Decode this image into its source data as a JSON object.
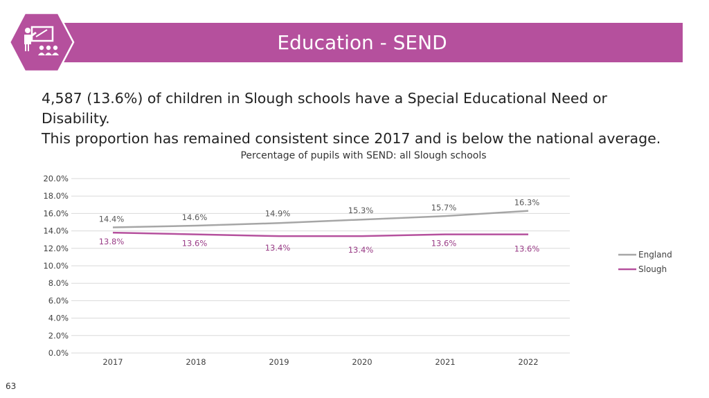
{
  "header": {
    "title": "Education - SEND",
    "accent_color": "#b5509d",
    "icon": "teacher-presentation-icon"
  },
  "summary": {
    "line1": "4,587 (13.6%) of children in Slough schools have a Special Educational Need or Disability.",
    "line2": "This proportion has remained consistent since 2017 and is below the national average."
  },
  "chart_data": {
    "type": "line",
    "title": "Percentage of pupils with SEND: all Slough schools",
    "categories": [
      "2017",
      "2018",
      "2019",
      "2020",
      "2021",
      "2022"
    ],
    "ylim": [
      0,
      20
    ],
    "yticks": [
      "0.0%",
      "2.0%",
      "4.0%",
      "6.0%",
      "8.0%",
      "10.0%",
      "12.0%",
      "14.0%",
      "16.0%",
      "18.0%",
      "20.0%"
    ],
    "grid": true,
    "legend": "right",
    "series": [
      {
        "name": "England",
        "color": "#a6a6a6",
        "label_color": "#595959",
        "values": [
          14.4,
          14.6,
          14.9,
          15.3,
          15.7,
          16.3
        ],
        "labels": [
          "14.4%",
          "14.6%",
          "14.9%",
          "15.3%",
          "15.7%",
          "16.3%"
        ]
      },
      {
        "name": "Slough",
        "color": "#b5509d",
        "label_color": "#9a3d87",
        "values": [
          13.8,
          13.6,
          13.4,
          13.4,
          13.6,
          13.6
        ],
        "labels": [
          "13.8%",
          "13.6%",
          "13.4%",
          "13.4%",
          "13.6%",
          "13.6%"
        ]
      }
    ]
  },
  "footer": {
    "page_number": "63"
  }
}
